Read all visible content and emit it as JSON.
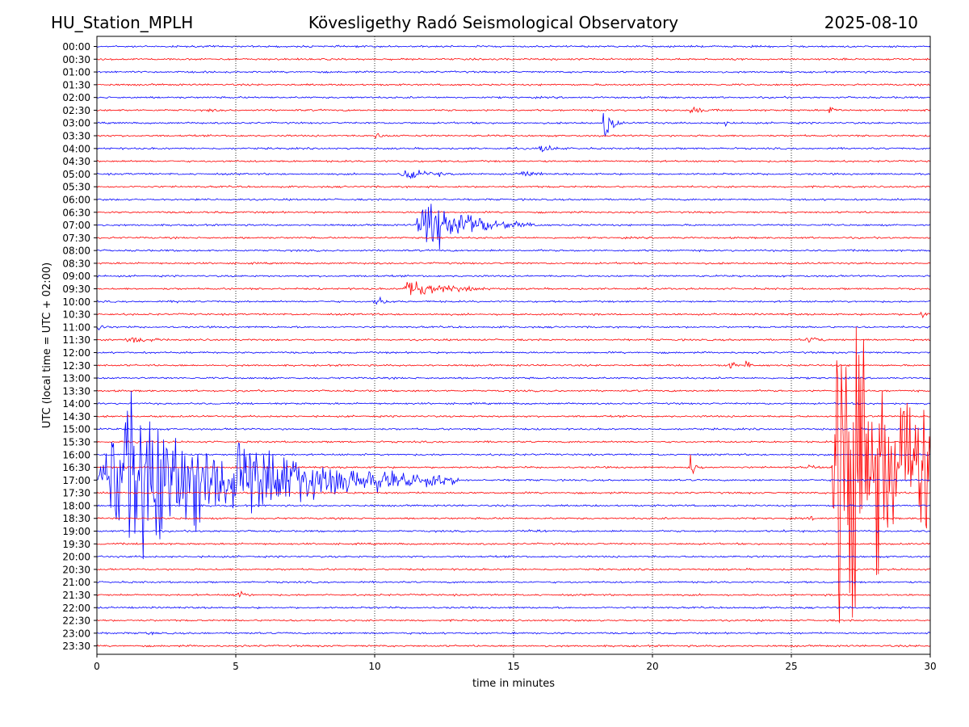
{
  "header": {
    "station": "HU_Station_MPLH",
    "observatory": "Kövesligethy Radó Seismological Observatory",
    "date": "2025-08-10"
  },
  "chart_data": {
    "type": "line",
    "title": "Kövesligethy Radó Seismological Observatory",
    "xlabel": "time in minutes",
    "ylabel": "UTC (local time = UTC + 02:00)",
    "xlim": [
      0,
      30
    ],
    "x_ticks": [
      0,
      5,
      10,
      15,
      20,
      25,
      30
    ],
    "grid": "vertical dotted lines at 5-minute ticks",
    "trace_colors": [
      "#0000ff",
      "#ff0000"
    ],
    "traces": [
      {
        "label": "00:00",
        "events": []
      },
      {
        "label": "00:30",
        "events": []
      },
      {
        "label": "01:00",
        "events": []
      },
      {
        "label": "01:30",
        "events": []
      },
      {
        "label": "02:00",
        "events": []
      },
      {
        "label": "02:30",
        "events": [
          {
            "start": 21.3,
            "dur": 1.0,
            "amp": 0.5
          },
          {
            "start": 26.3,
            "dur": 0.9,
            "amp": 0.45
          },
          {
            "start": 4.0,
            "dur": 0.6,
            "amp": 0.15
          }
        ]
      },
      {
        "label": "03:00",
        "events": [
          {
            "start": 18.2,
            "dur": 0.8,
            "amp": 1.6
          },
          {
            "start": 22.6,
            "dur": 0.4,
            "amp": 0.6
          }
        ]
      },
      {
        "label": "03:30",
        "events": [
          {
            "start": 9.95,
            "dur": 1.1,
            "amp": 0.25
          }
        ]
      },
      {
        "label": "04:00",
        "events": [
          {
            "start": 15.9,
            "dur": 1.2,
            "amp": 0.45
          }
        ]
      },
      {
        "label": "04:30",
        "events": []
      },
      {
        "label": "05:00",
        "events": [
          {
            "start": 10.9,
            "dur": 3.0,
            "amp": 0.5
          },
          {
            "start": 15.2,
            "dur": 1.5,
            "amp": 0.35
          }
        ]
      },
      {
        "label": "05:30",
        "events": []
      },
      {
        "label": "06:00",
        "events": []
      },
      {
        "label": "06:30",
        "events": []
      },
      {
        "label": "07:00",
        "events": [
          {
            "start": 11.45,
            "dur": 4.5,
            "amp": 2.5
          }
        ]
      },
      {
        "label": "07:30",
        "events": []
      },
      {
        "label": "08:00",
        "events": []
      },
      {
        "label": "08:30",
        "events": []
      },
      {
        "label": "09:00",
        "events": []
      },
      {
        "label": "09:30",
        "events": [
          {
            "start": 11.0,
            "dur": 3.5,
            "amp": 1.0
          }
        ]
      },
      {
        "label": "10:00",
        "events": [
          {
            "start": 2.85,
            "dur": 0.5,
            "amp": 0.25
          },
          {
            "start": 9.95,
            "dur": 1.3,
            "amp": 0.45
          }
        ]
      },
      {
        "label": "10:30",
        "events": [
          {
            "start": 29.6,
            "dur": 0.7,
            "amp": 0.45
          }
        ]
      },
      {
        "label": "11:00",
        "events": [
          {
            "start": 0.0,
            "dur": 0.6,
            "amp": 0.4
          }
        ]
      },
      {
        "label": "11:30",
        "events": [
          {
            "start": 1.0,
            "dur": 1.8,
            "amp": 0.55
          },
          {
            "start": 25.5,
            "dur": 1.3,
            "amp": 0.3
          }
        ]
      },
      {
        "label": "12:00",
        "events": []
      },
      {
        "label": "12:30",
        "events": [
          {
            "start": 22.7,
            "dur": 0.5,
            "amp": 0.6
          },
          {
            "start": 23.3,
            "dur": 0.5,
            "amp": 0.6
          }
        ]
      },
      {
        "label": "13:00",
        "events": []
      },
      {
        "label": "13:30",
        "events": []
      },
      {
        "label": "14:00",
        "events": []
      },
      {
        "label": "14:30",
        "events": []
      },
      {
        "label": "15:00",
        "events": []
      },
      {
        "label": "15:30",
        "events": []
      },
      {
        "label": "16:00",
        "events": []
      },
      {
        "label": "16:30",
        "events": [
          {
            "start": 21.3,
            "dur": 0.6,
            "amp": 1.2
          },
          {
            "start": 25.6,
            "dur": 0.6,
            "amp": 0.25
          }
        ]
      },
      {
        "label": "17:00",
        "events": [
          {
            "start": 0.0,
            "dur": 13.0,
            "amp": 8.0
          }
        ]
      },
      {
        "label": "17:30",
        "events": []
      },
      {
        "label": "18:00",
        "events": []
      },
      {
        "label": "18:30",
        "events": [
          {
            "start": 25.6,
            "dur": 0.7,
            "amp": 0.2
          }
        ]
      },
      {
        "label": "19:00",
        "events": [
          {
            "start": 15.5,
            "dur": 0.8,
            "amp": 0.25
          },
          {
            "start": 24.6,
            "dur": 0.6,
            "amp": 0.2
          }
        ]
      },
      {
        "label": "19:30",
        "events": []
      },
      {
        "label": "20:00",
        "events": []
      },
      {
        "label": "20:30",
        "events": []
      },
      {
        "label": "21:00",
        "events": []
      },
      {
        "label": "21:30",
        "events": [
          {
            "start": 4.9,
            "dur": 0.7,
            "amp": 1.0
          }
        ]
      },
      {
        "label": "22:00",
        "events": []
      },
      {
        "label": "22:30",
        "events": []
      },
      {
        "label": "23:00",
        "events": [
          {
            "start": 1.7,
            "dur": 0.6,
            "amp": 0.15
          },
          {
            "start": 14.9,
            "dur": 0.4,
            "amp": 0.2
          }
        ]
      },
      {
        "label": "23:30",
        "events": []
      }
    ],
    "continuous_activity": [
      {
        "trace": "16:30",
        "start": 26.45,
        "end": 30.0,
        "amp": 6.0
      },
      {
        "trace": "16:30",
        "start": 26.6,
        "end": 27.6,
        "amp": 11.0
      }
    ]
  }
}
